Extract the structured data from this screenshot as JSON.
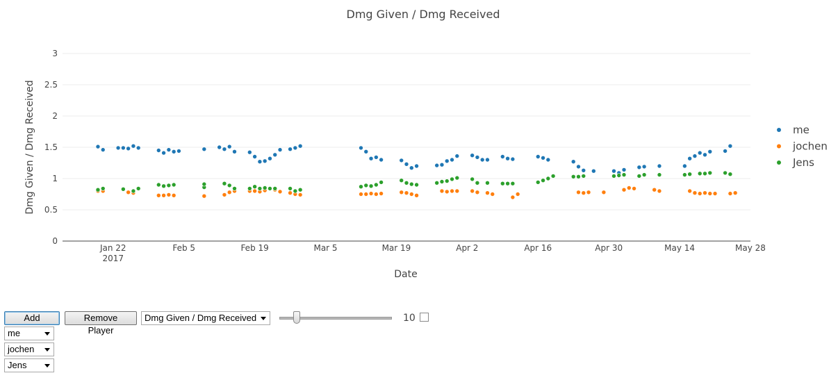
{
  "chart_data": {
    "type": "scatter",
    "title": "Dmg Given / Dmg Received",
    "xlabel": "Date",
    "ylabel": "Dmg Given / Dmg Received",
    "xlim": [
      "2017-01-12",
      "2017-05-28"
    ],
    "ylim": [
      0,
      3
    ],
    "yticks": [
      0,
      0.5,
      1,
      1.5,
      2,
      2.5,
      3
    ],
    "xticks": [
      {
        "date": "2017-01-22",
        "label": "Jan 22",
        "sublabel": "2017"
      },
      {
        "date": "2017-02-05",
        "label": "Feb 5"
      },
      {
        "date": "2017-02-19",
        "label": "Feb 19"
      },
      {
        "date": "2017-03-05",
        "label": "Mar 5"
      },
      {
        "date": "2017-03-19",
        "label": "Mar 19"
      },
      {
        "date": "2017-04-02",
        "label": "Apr 2"
      },
      {
        "date": "2017-04-16",
        "label": "Apr 16"
      },
      {
        "date": "2017-04-30",
        "label": "Apr 30"
      },
      {
        "date": "2017-05-14",
        "label": "May 14"
      },
      {
        "date": "2017-05-28",
        "label": "May 28"
      }
    ],
    "grid": true,
    "legend": "right",
    "series": [
      {
        "name": "me",
        "color": "#1f77b4",
        "points": [
          [
            "2017-01-19",
            1.51
          ],
          [
            "2017-01-20",
            1.46
          ],
          [
            "2017-01-23",
            1.49
          ],
          [
            "2017-01-24",
            1.49
          ],
          [
            "2017-01-25",
            1.48
          ],
          [
            "2017-01-26",
            1.52
          ],
          [
            "2017-01-27",
            1.49
          ],
          [
            "2017-01-31",
            1.45
          ],
          [
            "2017-02-01",
            1.41
          ],
          [
            "2017-02-02",
            1.46
          ],
          [
            "2017-02-03",
            1.43
          ],
          [
            "2017-02-04",
            1.44
          ],
          [
            "2017-02-09",
            1.47
          ],
          [
            "2017-02-12",
            1.5
          ],
          [
            "2017-02-13",
            1.47
          ],
          [
            "2017-02-14",
            1.51
          ],
          [
            "2017-02-15",
            1.43
          ],
          [
            "2017-02-18",
            1.42
          ],
          [
            "2017-02-19",
            1.35
          ],
          [
            "2017-02-20",
            1.27
          ],
          [
            "2017-02-21",
            1.28
          ],
          [
            "2017-02-22",
            1.32
          ],
          [
            "2017-02-23",
            1.38
          ],
          [
            "2017-02-24",
            1.46
          ],
          [
            "2017-02-26",
            1.47
          ],
          [
            "2017-02-27",
            1.49
          ],
          [
            "2017-02-28",
            1.52
          ],
          [
            "2017-03-12",
            1.49
          ],
          [
            "2017-03-13",
            1.43
          ],
          [
            "2017-03-14",
            1.32
          ],
          [
            "2017-03-15",
            1.34
          ],
          [
            "2017-03-16",
            1.3
          ],
          [
            "2017-03-20",
            1.29
          ],
          [
            "2017-03-21",
            1.23
          ],
          [
            "2017-03-22",
            1.17
          ],
          [
            "2017-03-23",
            1.2
          ],
          [
            "2017-03-27",
            1.21
          ],
          [
            "2017-03-28",
            1.22
          ],
          [
            "2017-03-29",
            1.28
          ],
          [
            "2017-03-30",
            1.3
          ],
          [
            "2017-03-31",
            1.36
          ],
          [
            "2017-04-03",
            1.37
          ],
          [
            "2017-04-04",
            1.34
          ],
          [
            "2017-04-05",
            1.3
          ],
          [
            "2017-04-06",
            1.3
          ],
          [
            "2017-04-09",
            1.35
          ],
          [
            "2017-04-10",
            1.32
          ],
          [
            "2017-04-11",
            1.31
          ],
          [
            "2017-04-16",
            1.35
          ],
          [
            "2017-04-17",
            1.33
          ],
          [
            "2017-04-18",
            1.3
          ],
          [
            "2017-04-23",
            1.27
          ],
          [
            "2017-04-24",
            1.19
          ],
          [
            "2017-04-25",
            1.13
          ],
          [
            "2017-04-27",
            1.12
          ],
          [
            "2017-05-01",
            1.12
          ],
          [
            "2017-05-02",
            1.09
          ],
          [
            "2017-05-03",
            1.14
          ],
          [
            "2017-05-06",
            1.18
          ],
          [
            "2017-05-07",
            1.19
          ],
          [
            "2017-05-10",
            1.2
          ],
          [
            "2017-05-15",
            1.2
          ],
          [
            "2017-05-16",
            1.32
          ],
          [
            "2017-05-17",
            1.36
          ],
          [
            "2017-05-18",
            1.41
          ],
          [
            "2017-05-19",
            1.38
          ],
          [
            "2017-05-20",
            1.43
          ],
          [
            "2017-05-23",
            1.44
          ],
          [
            "2017-05-24",
            1.52
          ]
        ]
      },
      {
        "name": "jochen",
        "color": "#ff7f0e",
        "points": [
          [
            "2017-01-19",
            0.8
          ],
          [
            "2017-01-20",
            0.8
          ],
          [
            "2017-01-25",
            0.78
          ],
          [
            "2017-01-26",
            0.77
          ],
          [
            "2017-01-31",
            0.73
          ],
          [
            "2017-02-01",
            0.73
          ],
          [
            "2017-02-02",
            0.74
          ],
          [
            "2017-02-03",
            0.73
          ],
          [
            "2017-02-09",
            0.72
          ],
          [
            "2017-02-13",
            0.74
          ],
          [
            "2017-02-14",
            0.78
          ],
          [
            "2017-02-15",
            0.8
          ],
          [
            "2017-02-18",
            0.8
          ],
          [
            "2017-02-19",
            0.8
          ],
          [
            "2017-02-20",
            0.79
          ],
          [
            "2017-02-21",
            0.81
          ],
          [
            "2017-02-23",
            0.82
          ],
          [
            "2017-02-24",
            0.79
          ],
          [
            "2017-02-26",
            0.77
          ],
          [
            "2017-02-27",
            0.75
          ],
          [
            "2017-02-28",
            0.74
          ],
          [
            "2017-03-12",
            0.75
          ],
          [
            "2017-03-13",
            0.75
          ],
          [
            "2017-03-14",
            0.76
          ],
          [
            "2017-03-15",
            0.75
          ],
          [
            "2017-03-16",
            0.76
          ],
          [
            "2017-03-20",
            0.78
          ],
          [
            "2017-03-21",
            0.77
          ],
          [
            "2017-03-22",
            0.75
          ],
          [
            "2017-03-23",
            0.73
          ],
          [
            "2017-03-28",
            0.8
          ],
          [
            "2017-03-29",
            0.79
          ],
          [
            "2017-03-30",
            0.8
          ],
          [
            "2017-03-31",
            0.8
          ],
          [
            "2017-04-03",
            0.8
          ],
          [
            "2017-04-04",
            0.78
          ],
          [
            "2017-04-06",
            0.77
          ],
          [
            "2017-04-07",
            0.75
          ],
          [
            "2017-04-11",
            0.7
          ],
          [
            "2017-04-12",
            0.75
          ],
          [
            "2017-04-24",
            0.78
          ],
          [
            "2017-04-25",
            0.77
          ],
          [
            "2017-04-26",
            0.78
          ],
          [
            "2017-04-29",
            0.78
          ],
          [
            "2017-05-03",
            0.82
          ],
          [
            "2017-05-04",
            0.85
          ],
          [
            "2017-05-05",
            0.84
          ],
          [
            "2017-05-09",
            0.82
          ],
          [
            "2017-05-10",
            0.8
          ],
          [
            "2017-05-16",
            0.8
          ],
          [
            "2017-05-17",
            0.77
          ],
          [
            "2017-05-18",
            0.76
          ],
          [
            "2017-05-19",
            0.77
          ],
          [
            "2017-05-20",
            0.76
          ],
          [
            "2017-05-21",
            0.76
          ],
          [
            "2017-05-24",
            0.76
          ],
          [
            "2017-05-25",
            0.77
          ]
        ]
      },
      {
        "name": "Jens",
        "color": "#2ca02c",
        "points": [
          [
            "2017-01-19",
            0.82
          ],
          [
            "2017-01-20",
            0.84
          ],
          [
            "2017-01-24",
            0.83
          ],
          [
            "2017-01-26",
            0.8
          ],
          [
            "2017-01-27",
            0.84
          ],
          [
            "2017-01-31",
            0.9
          ],
          [
            "2017-02-01",
            0.88
          ],
          [
            "2017-02-02",
            0.89
          ],
          [
            "2017-02-03",
            0.9
          ],
          [
            "2017-02-09",
            0.86
          ],
          [
            "2017-02-09",
            0.91
          ],
          [
            "2017-02-13",
            0.92
          ],
          [
            "2017-02-14",
            0.89
          ],
          [
            "2017-02-15",
            0.84
          ],
          [
            "2017-02-18",
            0.84
          ],
          [
            "2017-02-19",
            0.87
          ],
          [
            "2017-02-20",
            0.84
          ],
          [
            "2017-02-21",
            0.85
          ],
          [
            "2017-02-22",
            0.84
          ],
          [
            "2017-02-23",
            0.84
          ],
          [
            "2017-02-26",
            0.84
          ],
          [
            "2017-02-27",
            0.8
          ],
          [
            "2017-02-28",
            0.82
          ],
          [
            "2017-03-12",
            0.87
          ],
          [
            "2017-03-13",
            0.89
          ],
          [
            "2017-03-14",
            0.88
          ],
          [
            "2017-03-15",
            0.9
          ],
          [
            "2017-03-16",
            0.94
          ],
          [
            "2017-03-20",
            0.97
          ],
          [
            "2017-03-21",
            0.93
          ],
          [
            "2017-03-22",
            0.91
          ],
          [
            "2017-03-23",
            0.9
          ],
          [
            "2017-03-27",
            0.93
          ],
          [
            "2017-03-28",
            0.95
          ],
          [
            "2017-03-29",
            0.96
          ],
          [
            "2017-03-30",
            0.99
          ],
          [
            "2017-03-31",
            1.01
          ],
          [
            "2017-04-03",
            0.99
          ],
          [
            "2017-04-04",
            0.93
          ],
          [
            "2017-04-06",
            0.93
          ],
          [
            "2017-04-09",
            0.92
          ],
          [
            "2017-04-10",
            0.92
          ],
          [
            "2017-04-11",
            0.92
          ],
          [
            "2017-04-16",
            0.94
          ],
          [
            "2017-04-17",
            0.97
          ],
          [
            "2017-04-18",
            1.0
          ],
          [
            "2017-04-19",
            1.04
          ],
          [
            "2017-04-23",
            1.03
          ],
          [
            "2017-04-24",
            1.03
          ],
          [
            "2017-04-25",
            1.04
          ],
          [
            "2017-05-01",
            1.04
          ],
          [
            "2017-05-02",
            1.05
          ],
          [
            "2017-05-03",
            1.06
          ],
          [
            "2017-05-06",
            1.04
          ],
          [
            "2017-05-07",
            1.06
          ],
          [
            "2017-05-10",
            1.06
          ],
          [
            "2017-05-15",
            1.06
          ],
          [
            "2017-05-16",
            1.07
          ],
          [
            "2017-05-18",
            1.08
          ],
          [
            "2017-05-19",
            1.08
          ],
          [
            "2017-05-20",
            1.09
          ],
          [
            "2017-05-23",
            1.09
          ],
          [
            "2017-05-24",
            1.07
          ]
        ]
      }
    ]
  },
  "controls": {
    "add_player_label": "Add Player",
    "remove_player_label": "Remove Player",
    "metric_select_value": "Dmg Given / Dmg Received",
    "slider_value": "10",
    "slider_fraction": 0.13,
    "checkbox_checked": false,
    "player_selects": [
      "me",
      "jochen",
      "Jens"
    ]
  }
}
